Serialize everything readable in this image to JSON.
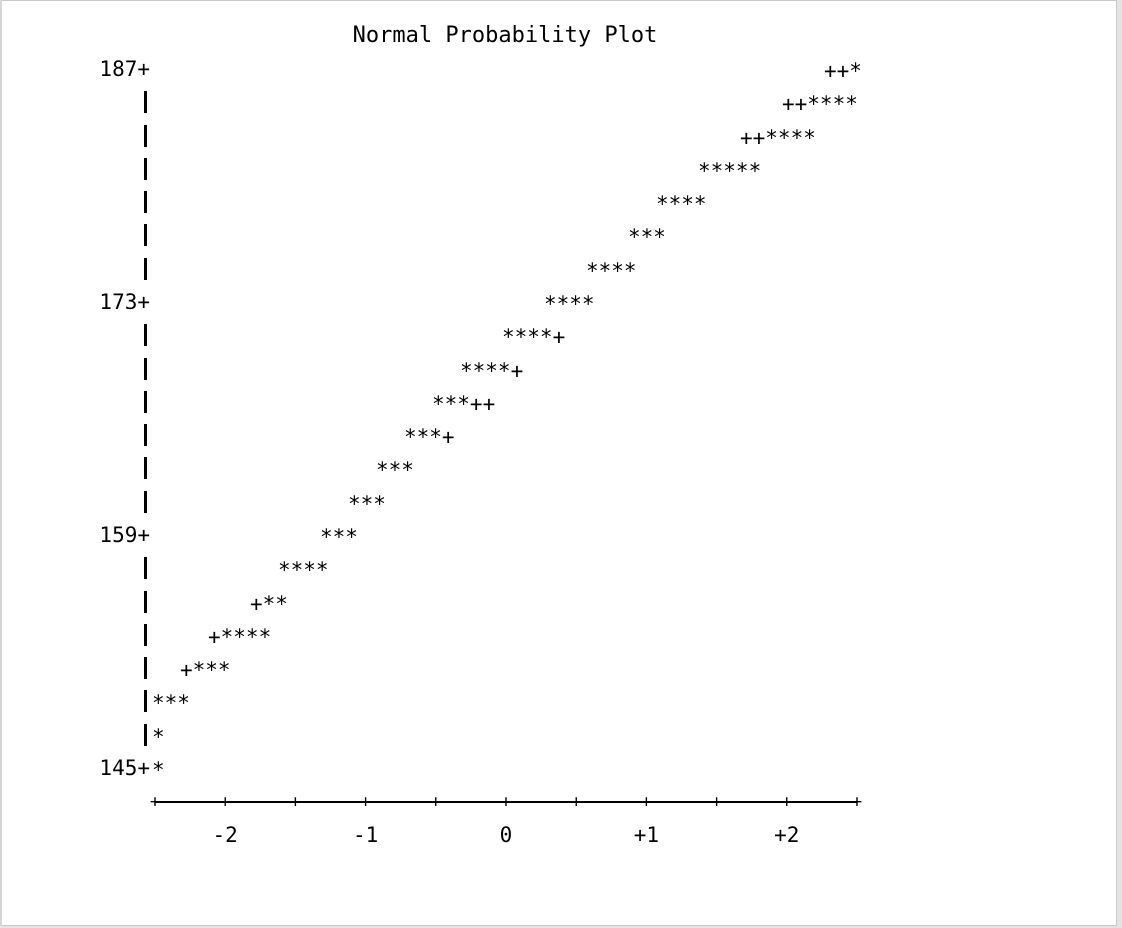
{
  "chart_data": {
    "type": "scatter",
    "title": "Normal Probability Plot",
    "xlabel": "",
    "ylabel": "",
    "ylim": [
      145,
      187
    ],
    "xlim": [
      -2.5,
      2.5
    ],
    "y_tick_labels": [
      "187+",
      "173+",
      "159+",
      "145+"
    ],
    "x_tick_labels": [
      "-2",
      "-1",
      "0",
      "+1",
      "+2"
    ],
    "x_axis_line": "+----+----+----+----+----+----+----+----+----+----+",
    "rows": [
      {
        "y": 187,
        "marks": "++*"
      },
      {
        "y": 185,
        "marks": "++****"
      },
      {
        "y": 183,
        "marks": "++****"
      },
      {
        "y": 181,
        "marks": "*****"
      },
      {
        "y": 179,
        "marks": "****"
      },
      {
        "y": 177,
        "marks": "***"
      },
      {
        "y": 175,
        "marks": "****"
      },
      {
        "y": 173,
        "marks": "****"
      },
      {
        "y": 171,
        "marks": "****+"
      },
      {
        "y": 169,
        "marks": "****+"
      },
      {
        "y": 167,
        "marks": "***++"
      },
      {
        "y": 165,
        "marks": "***+"
      },
      {
        "y": 163,
        "marks": "***"
      },
      {
        "y": 161,
        "marks": "***"
      },
      {
        "y": 159,
        "marks": "***"
      },
      {
        "y": 157,
        "marks": "****"
      },
      {
        "y": 155,
        "marks": "+**"
      },
      {
        "y": 153,
        "marks": "+****"
      },
      {
        "y": 151,
        "marks": "+***"
      },
      {
        "y": 149,
        "marks": "***"
      },
      {
        "y": 147,
        "marks": "*"
      },
      {
        "y": 145,
        "marks": "*"
      }
    ]
  }
}
